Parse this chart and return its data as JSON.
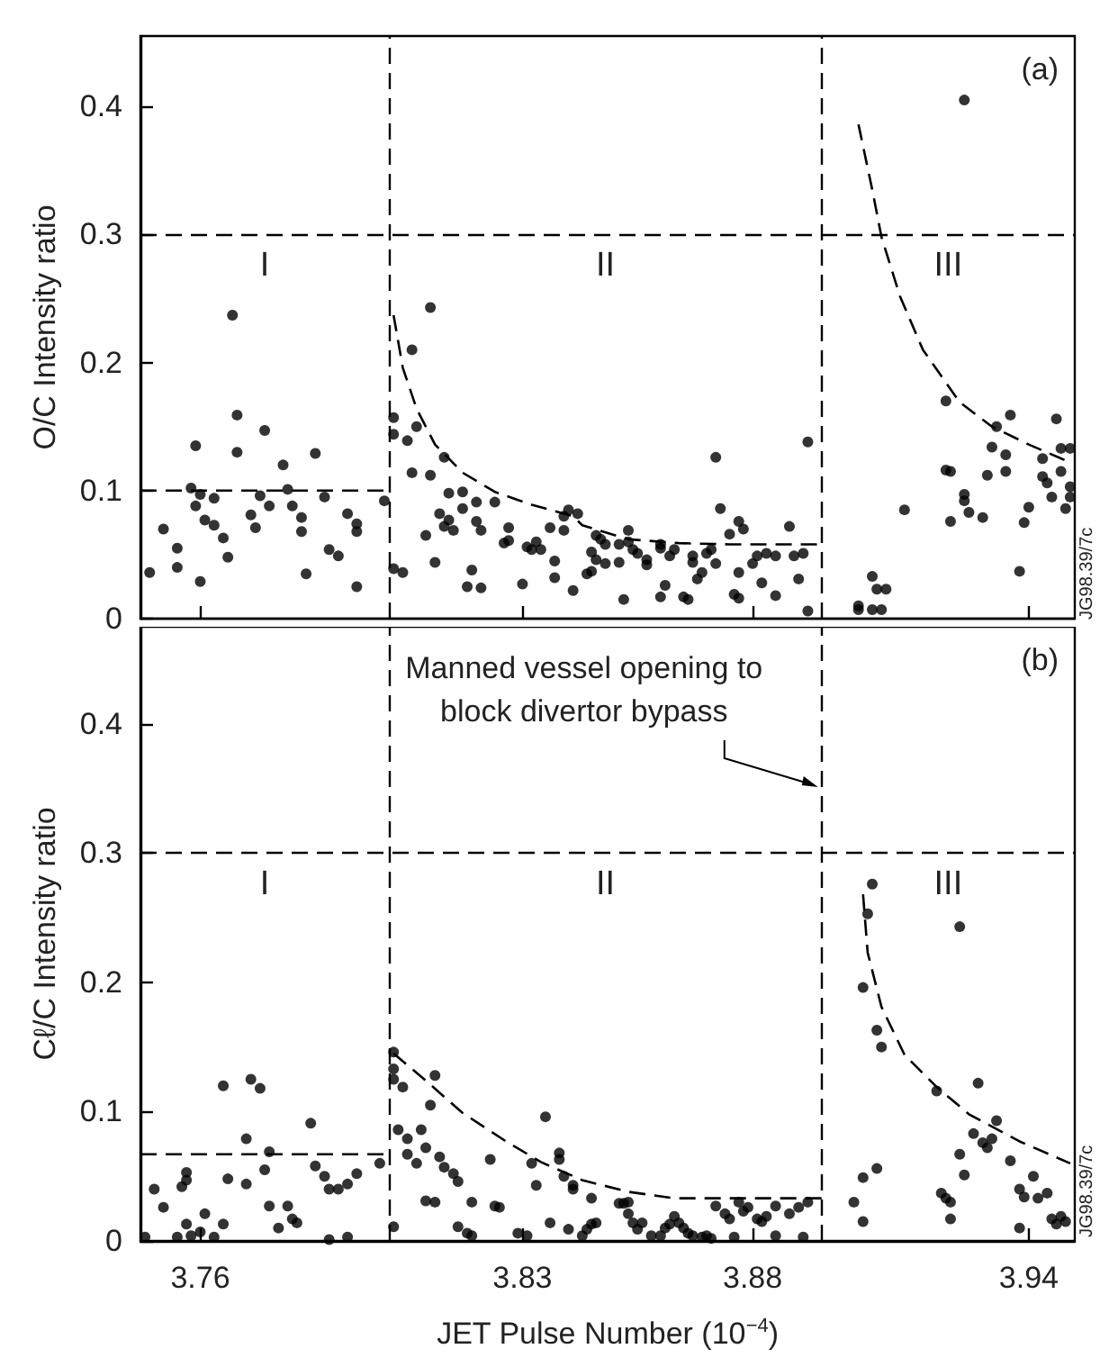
{
  "chart_data": [
    {
      "type": "scatter",
      "ylabel": "O/C Intensity ratio",
      "xlim": [
        3.747,
        3.95
      ],
      "ylim": [
        0,
        0.455
      ],
      "xticks": [
        3.76,
        3.83,
        3.88,
        3.94
      ],
      "yticks": [
        0,
        0.1,
        0.2,
        0.3,
        0.4
      ],
      "tick_labels": "y",
      "series": [
        {
          "color": "#000000",
          "marker": "circle",
          "x": [
            3.749,
            3.752,
            3.755,
            3.755,
            3.758,
            3.759,
            3.759,
            3.76,
            3.76,
            3.761,
            3.763,
            3.763,
            3.765,
            3.766,
            3.767,
            3.768,
            3.768,
            3.771,
            3.772,
            3.773,
            3.774,
            3.775,
            3.778,
            3.779,
            3.78,
            3.782,
            3.782,
            3.783,
            3.785,
            3.787,
            3.788,
            3.79,
            3.792,
            3.794,
            3.794,
            3.794,
            3.8,
            3.802,
            3.802,
            3.802,
            3.804,
            3.805,
            3.806,
            3.807,
            3.806,
            3.81,
            3.81,
            3.809,
            3.811,
            3.813,
            3.812,
            3.814,
            3.814,
            3.813,
            3.815,
            3.817,
            3.817,
            3.818,
            3.819,
            3.82,
            3.82,
            3.821,
            3.821,
            3.824,
            3.826,
            3.827,
            3.827,
            3.83,
            3.831,
            3.832,
            3.833,
            3.834,
            3.836,
            3.837,
            3.837,
            3.839,
            3.839,
            3.84,
            3.841,
            3.842,
            3.844,
            3.845,
            3.845,
            3.846,
            3.846,
            3.847,
            3.848,
            3.848,
            3.851,
            3.851,
            3.853,
            3.853,
            3.852,
            3.854,
            3.855,
            3.857,
            3.857,
            3.86,
            3.86,
            3.861,
            3.86,
            3.862,
            3.863,
            3.865,
            3.866,
            3.867,
            3.867,
            3.868,
            3.869,
            3.87,
            3.871,
            3.872,
            3.873,
            3.872,
            3.875,
            3.876,
            3.877,
            3.877,
            3.877,
            3.878,
            3.88,
            3.881,
            3.883,
            3.885,
            3.882,
            3.885,
            3.888,
            3.889,
            3.891,
            3.89,
            3.892,
            3.892,
            3.903,
            3.903,
            3.906,
            3.906,
            3.907,
            3.908,
            3.909,
            3.913,
            3.922,
            3.922,
            3.923,
            3.923,
            3.926,
            3.926,
            3.927,
            3.93,
            3.926,
            3.931,
            3.932,
            3.933,
            3.935,
            3.935,
            3.936,
            3.938,
            3.939,
            3.94,
            3.943,
            3.943,
            3.944,
            3.945,
            3.946,
            3.947,
            3.947,
            3.948,
            3.949,
            3.949,
            3.949
          ],
          "values": [
            0.036,
            0.07,
            0.055,
            0.04,
            0.102,
            0.135,
            0.088,
            0.097,
            0.029,
            0.077,
            0.073,
            0.094,
            0.063,
            0.048,
            0.237,
            0.159,
            0.13,
            0.081,
            0.071,
            0.096,
            0.147,
            0.088,
            0.12,
            0.101,
            0.088,
            0.079,
            0.068,
            0.035,
            0.129,
            0.095,
            0.054,
            0.049,
            0.082,
            0.025,
            0.074,
            0.068,
            0.092,
            0.144,
            0.157,
            0.039,
            0.036,
            0.139,
            0.21,
            0.15,
            0.114,
            0.243,
            0.112,
            0.065,
            0.044,
            0.126,
            0.082,
            0.098,
            0.077,
            0.072,
            0.069,
            0.099,
            0.086,
            0.025,
            0.038,
            0.091,
            0.076,
            0.069,
            0.024,
            0.091,
            0.059,
            0.061,
            0.071,
            0.027,
            0.056,
            0.054,
            0.06,
            0.054,
            0.071,
            0.032,
            0.045,
            0.069,
            0.08,
            0.085,
            0.022,
            0.082,
            0.035,
            0.037,
            0.052,
            0.065,
            0.046,
            0.062,
            0.058,
            0.043,
            0.044,
            0.058,
            0.069,
            0.06,
            0.015,
            0.054,
            0.051,
            0.042,
            0.046,
            0.058,
            0.055,
            0.026,
            0.017,
            0.049,
            0.054,
            0.017,
            0.015,
            0.049,
            0.044,
            0.031,
            0.036,
            0.051,
            0.054,
            0.126,
            0.086,
            0.043,
            0.066,
            0.019,
            0.016,
            0.036,
            0.076,
            0.07,
            0.043,
            0.049,
            0.051,
            0.049,
            0.028,
            0.018,
            0.072,
            0.049,
            0.051,
            0.031,
            0.138,
            0.006,
            0.007,
            0.01,
            0.033,
            0.007,
            0.023,
            0.007,
            0.023,
            0.085,
            0.17,
            0.116,
            0.115,
            0.076,
            0.097,
            0.092,
            0.083,
            0.079,
            0.405,
            0.112,
            0.134,
            0.15,
            0.128,
            0.115,
            0.159,
            0.037,
            0.075,
            0.087,
            0.125,
            0.111,
            0.106,
            0.095,
            0.156,
            0.133,
            0.115,
            0.086,
            0.133,
            0.095,
            0.103
          ]
        },
        {
          "type": "line",
          "color": "#000000",
          "marker": "none",
          "line_style": "dashed",
          "x": [
            3.747,
            3.801
          ],
          "values": [
            0.1,
            0.1
          ]
        },
        {
          "type": "line",
          "color": "#000000",
          "marker": "none",
          "line_style": "dashed",
          "x": [
            3.802,
            3.804,
            3.807,
            3.811,
            3.817,
            3.824,
            3.832,
            3.841,
            3.843,
            3.853,
            3.864,
            3.875,
            3.895
          ],
          "values": [
            0.237,
            0.196,
            0.164,
            0.136,
            0.114,
            0.099,
            0.089,
            0.08,
            0.073,
            0.062,
            0.059,
            0.058,
            0.058
          ]
        },
        {
          "type": "line",
          "color": "#000000",
          "marker": "none",
          "line_style": "dashed",
          "x": [
            3.903,
            3.906,
            3.908,
            3.912,
            3.917,
            3.925,
            3.932,
            3.94,
            3.949
          ],
          "values": [
            0.386,
            0.335,
            0.298,
            0.252,
            0.21,
            0.169,
            0.15,
            0.136,
            0.122
          ]
        }
      ],
      "ref_lines": [
        {
          "axis": "y",
          "value": 0.3,
          "label": null,
          "color": "#000000",
          "line_style": "dashed"
        },
        {
          "axis": "x",
          "value": 3.801,
          "label": null,
          "color": "#000000",
          "line_style": "dashed"
        },
        {
          "axis": "x",
          "value": 3.895,
          "label": null,
          "color": "#000000",
          "line_style": "dashed"
        }
      ],
      "annotations": [
        "I",
        "II",
        "III",
        "(a)",
        "JG98.39/7c"
      ]
    },
    {
      "type": "scatter",
      "ylabel": "Cℓ/C Intensity ratio",
      "xlabel": "JET Pulse Number (10$^{−4}$)",
      "xlim": [
        3.747,
        3.95
      ],
      "ylim": [
        0,
        0.475
      ],
      "xticks": [
        3.76,
        3.83,
        3.88,
        3.94
      ],
      "yticks": [
        0,
        0.1,
        0.2,
        0.3,
        0.4
      ],
      "series": [
        {
          "color": "#000000",
          "marker": "circle",
          "x": [
            3.75,
            3.756,
            3.757,
            3.757,
            3.765,
            3.766,
            3.77,
            3.77,
            3.771,
            3.773,
            3.774,
            3.775,
            3.784,
            3.785,
            3.787,
            3.788,
            3.79,
            3.792,
            3.794,
            3.799,
            3.748,
            3.752,
            3.755,
            3.757,
            3.758,
            3.76,
            3.761,
            3.763,
            3.765,
            3.775,
            3.777,
            3.779,
            3.78,
            3.781,
            3.788,
            3.792,
            3.802,
            3.802,
            3.802,
            3.804,
            3.803,
            3.805,
            3.808,
            3.807,
            3.805,
            3.809,
            3.81,
            3.811,
            3.812,
            3.813,
            3.815,
            3.816,
            3.823,
            3.832,
            3.833,
            3.835,
            3.838,
            3.838,
            3.839,
            3.841,
            3.841,
            3.845,
            3.802,
            3.809,
            3.811,
            3.816,
            3.818,
            3.819,
            3.819,
            3.824,
            3.825,
            3.829,
            3.831,
            3.836,
            3.84,
            3.843,
            3.844,
            3.845,
            3.846,
            3.851,
            3.852,
            3.853,
            3.853,
            3.854,
            3.855,
            3.856,
            3.858,
            3.86,
            3.861,
            3.862,
            3.863,
            3.864,
            3.865,
            3.866,
            3.867,
            3.869,
            3.87,
            3.871,
            3.872,
            3.874,
            3.875,
            3.876,
            3.877,
            3.878,
            3.879,
            3.881,
            3.882,
            3.883,
            3.885,
            3.885,
            3.888,
            3.89,
            3.891,
            3.892,
            3.906,
            3.905,
            3.904,
            3.907,
            3.908,
            3.925,
            3.92,
            3.929,
            3.933,
            3.928,
            3.93,
            3.931,
            3.932,
            3.925,
            3.926,
            3.936,
            3.941,
            3.904,
            3.907,
            3.921,
            3.922,
            3.938,
            3.939,
            3.942,
            3.902,
            3.904,
            3.923,
            3.923,
            3.938,
            3.944,
            3.945,
            3.946,
            3.947,
            3.948
          ],
          "values": [
            0.04,
            0.042,
            0.047,
            0.053,
            0.12,
            0.048,
            0.044,
            0.079,
            0.125,
            0.118,
            0.055,
            0.069,
            0.091,
            0.058,
            0.05,
            0.04,
            0.04,
            0.044,
            0.052,
            0.06,
            0.003,
            0.026,
            0.003,
            0.013,
            0.004,
            0.007,
            0.021,
            0.003,
            0.013,
            0.027,
            0.01,
            0.027,
            0.017,
            0.014,
            0.001,
            0.003,
            0.146,
            0.133,
            0.125,
            0.119,
            0.086,
            0.079,
            0.086,
            0.06,
            0.067,
            0.072,
            0.105,
            0.128,
            0.065,
            0.057,
            0.052,
            0.046,
            0.063,
            0.06,
            0.043,
            0.096,
            0.068,
            0.063,
            0.05,
            0.04,
            0.043,
            0.033,
            0.011,
            0.031,
            0.03,
            0.011,
            0.006,
            0.004,
            0.03,
            0.027,
            0.026,
            0.006,
            0.004,
            0.014,
            0.009,
            0.004,
            0.009,
            0.013,
            0.014,
            0.029,
            0.029,
            0.021,
            0.03,
            0.014,
            0.009,
            0.014,
            0.004,
            0.004,
            0.01,
            0.013,
            0.019,
            0.014,
            0.01,
            0.006,
            0.004,
            0.003,
            0.004,
            0.002,
            0.027,
            0.021,
            0.017,
            0.003,
            0.03,
            0.023,
            0.026,
            0.017,
            0.015,
            0.019,
            0.004,
            0.027,
            0.021,
            0.026,
            0.003,
            0.03,
            0.276,
            0.253,
            0.196,
            0.163,
            0.15,
            0.243,
            0.116,
            0.122,
            0.093,
            0.083,
            0.076,
            0.072,
            0.079,
            0.067,
            0.051,
            0.062,
            0.05,
            0.049,
            0.056,
            0.037,
            0.033,
            0.04,
            0.034,
            0.033,
            0.03,
            0.015,
            0.03,
            0.017,
            0.01,
            0.037,
            0.017,
            0.013,
            0.019,
            0.015
          ]
        },
        {
          "type": "line",
          "color": "#000000",
          "marker": "none",
          "line_style": "dashed",
          "x": [
            3.747,
            3.801
          ],
          "values": [
            0.067,
            0.067
          ]
        },
        {
          "type": "line",
          "color": "#000000",
          "marker": "none",
          "line_style": "dashed",
          "x": [
            3.802,
            3.809,
            3.817,
            3.826,
            3.834,
            3.843,
            3.853,
            3.863,
            3.895
          ],
          "values": [
            0.145,
            0.124,
            0.099,
            0.078,
            0.061,
            0.047,
            0.038,
            0.033,
            0.033
          ]
        },
        {
          "type": "line",
          "color": "#000000",
          "marker": "none",
          "line_style": "dashed",
          "x": [
            3.904,
            3.905,
            3.908,
            3.913,
            3.92,
            3.927,
            3.938,
            3.949
          ],
          "values": [
            0.268,
            0.223,
            0.181,
            0.144,
            0.119,
            0.098,
            0.077,
            0.06
          ]
        }
      ],
      "ref_lines": [
        {
          "axis": "y",
          "value": 0.3,
          "label": null,
          "color": "#000000",
          "line_style": "dashed"
        },
        {
          "axis": "x",
          "value": 3.801,
          "label": null,
          "color": "#000000",
          "line_style": "dashed"
        },
        {
          "axis": "x",
          "value": 3.895,
          "label": null,
          "color": "#000000",
          "line_style": "dashed"
        }
      ],
      "annotations": [
        "I",
        "II",
        "III",
        "(b)",
        "JG98.39/7c",
        {
          "text": "Manned vessel opening to\nblock divertor bypass",
          "x": 3.895,
          "y": 0.351
        }
      ]
    }
  ]
}
